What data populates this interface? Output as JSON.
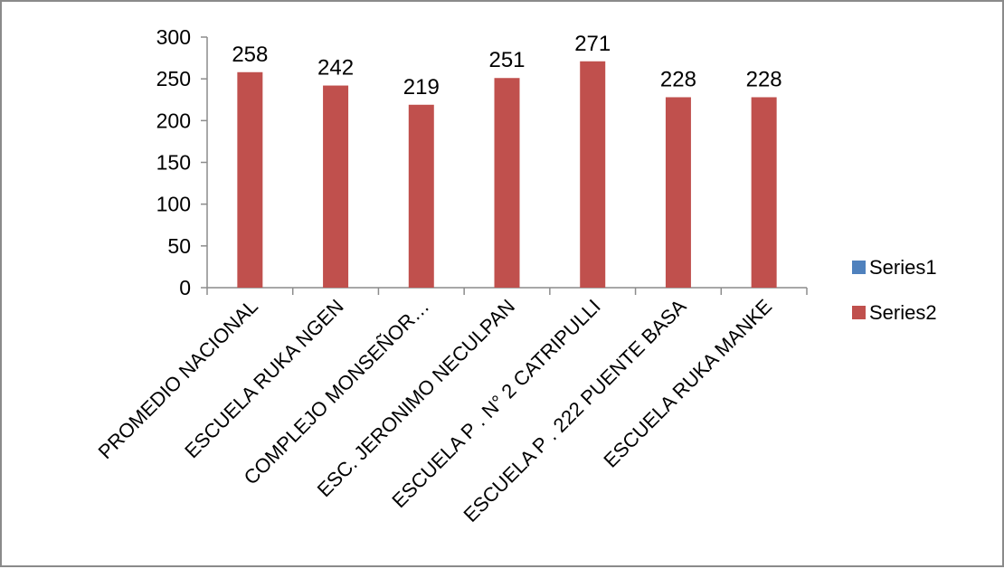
{
  "chart_data": {
    "type": "bar",
    "categories": [
      "PROMEDIO NACIONAL",
      "ESCUELA  RUKA NGEN",
      "COMPLEJO MONSEÑOR…",
      "ESC. JERONIMO NECULPAN",
      "ESCUELA P .  N°  2  CATRIPULLI",
      "ESCUELA P . 222  PUENTE BASA",
      "ESCUELA  RUKA MANKE"
    ],
    "series": [
      {
        "name": "Series1",
        "values": [
          null,
          null,
          null,
          null,
          null,
          null,
          null
        ],
        "color": "#4f81bd"
      },
      {
        "name": "Series2",
        "values": [
          258,
          242,
          219,
          251,
          271,
          228,
          228
        ],
        "color": "#c0504d"
      }
    ],
    "data_labels": [
      "258",
      "242",
      "219",
      "251",
      "271",
      "228",
      "228"
    ],
    "ylim": [
      0,
      300
    ],
    "yticks": [
      0,
      50,
      100,
      150,
      200,
      250,
      300
    ],
    "ytick_labels": [
      "0",
      "50",
      "100",
      "150",
      "200",
      "250",
      "300"
    ],
    "legend_position": "right",
    "grid": false
  }
}
